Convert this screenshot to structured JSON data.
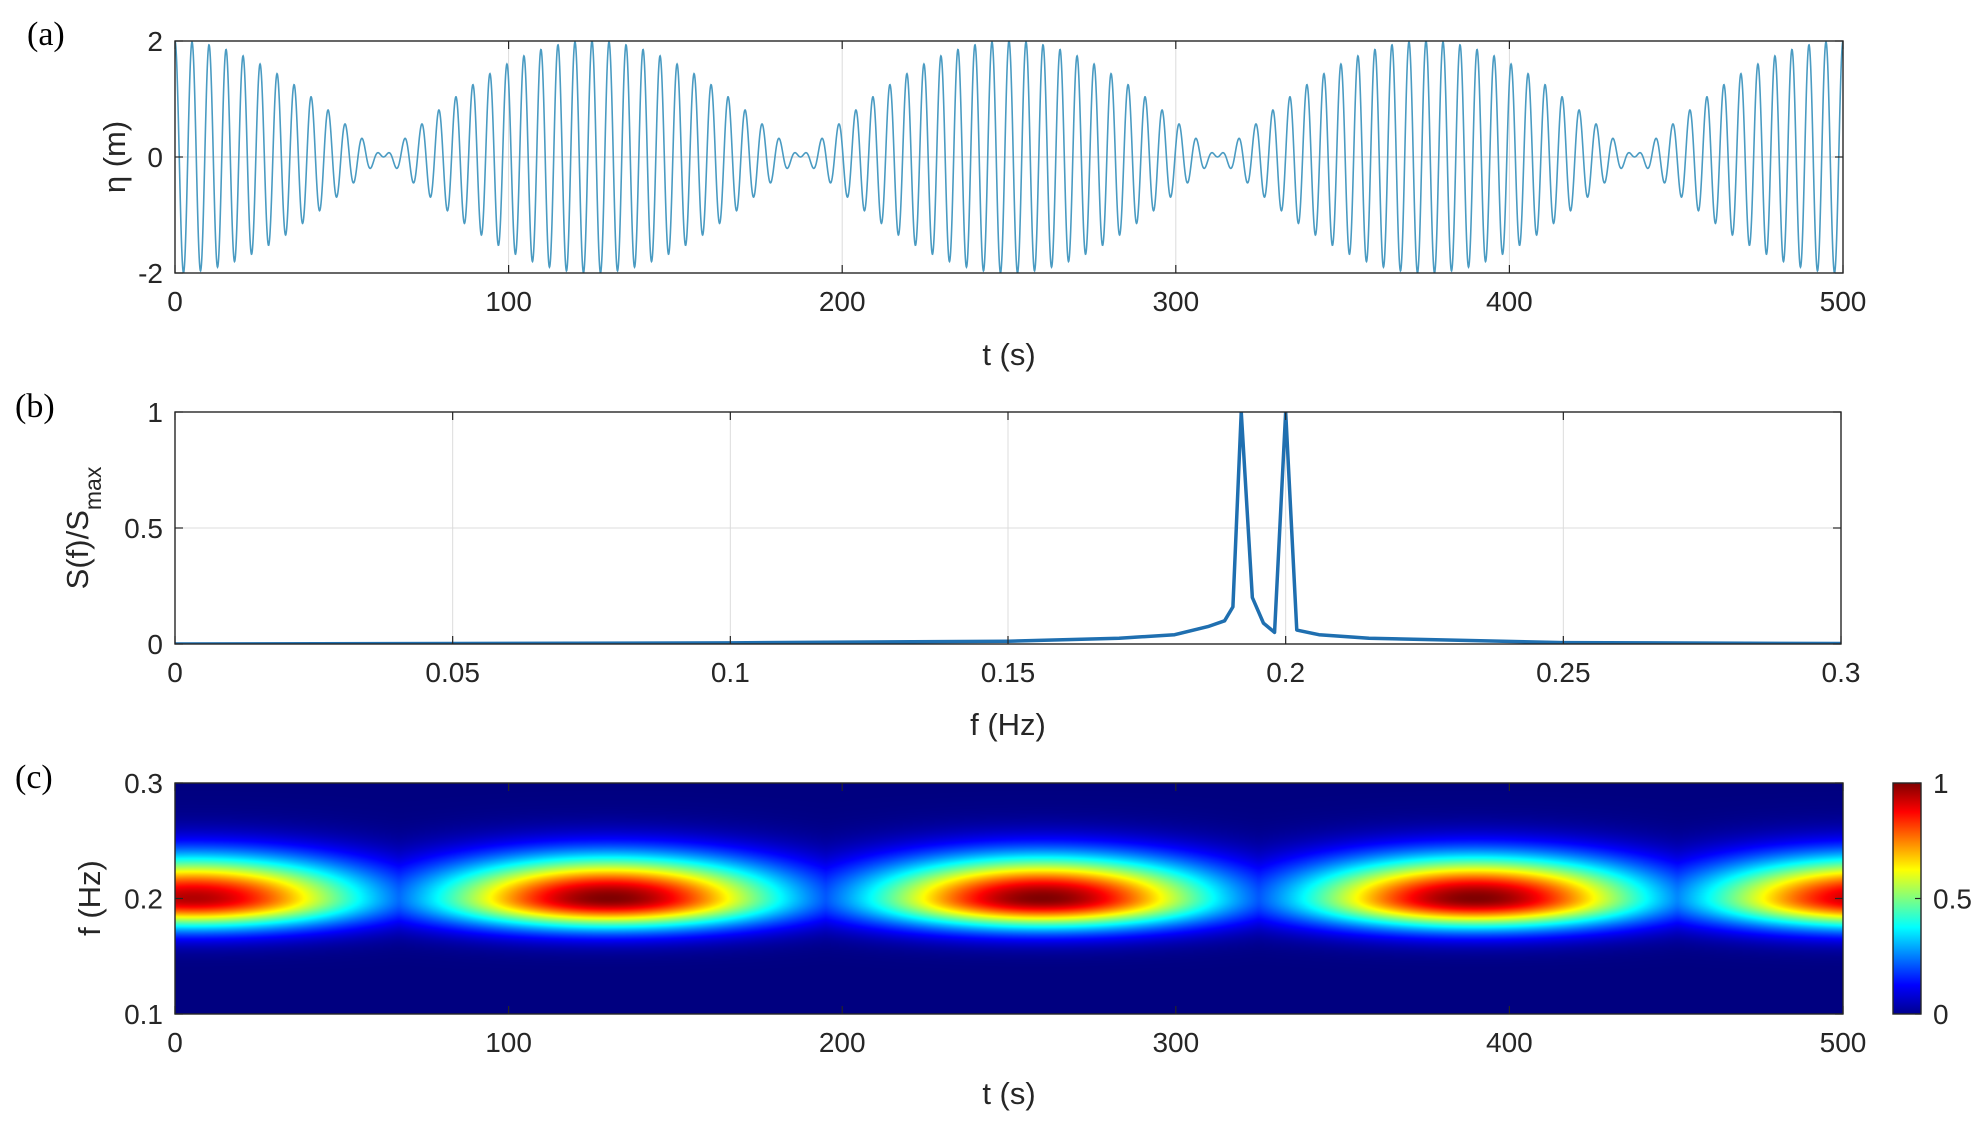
{
  "chart_data": [
    {
      "panel": "(a)",
      "type": "line",
      "xlabel": "t (s)",
      "ylabel": "η (m)",
      "xlim": [
        0,
        500
      ],
      "ylim": [
        -2,
        2
      ],
      "xticks": [
        "0",
        "100",
        "200",
        "300",
        "400",
        "500"
      ],
      "yticks": [
        "2",
        "0",
        "-2"
      ],
      "grid": true,
      "color": "#4a9bc2",
      "series": [
        {
          "function": "cos(2π·0.192·t) + cos(2π·0.2·t)",
          "components": [
            {
              "amplitude": 1,
              "frequency_hz": 0.192
            },
            {
              "amplitude": 1,
              "frequency_hz": 0.2
            }
          ]
        }
      ]
    },
    {
      "panel": "(b)",
      "type": "line",
      "xlabel": "f (Hz)",
      "ylabel": "S(f)/S_max",
      "xlim": [
        0,
        0.3
      ],
      "ylim": [
        0,
        1
      ],
      "xticks": [
        "0",
        "0.05",
        "0.1",
        "0.15",
        "0.2",
        "0.25",
        "0.3"
      ],
      "yticks": [
        "1",
        "0.5",
        "0"
      ],
      "grid": true,
      "color": "#1f6fb0",
      "x": [
        0,
        0.05,
        0.1,
        0.15,
        0.17,
        0.18,
        0.186,
        0.189,
        0.1905,
        0.192,
        0.194,
        0.196,
        0.198,
        0.2,
        0.202,
        0.206,
        0.215,
        0.25,
        0.3
      ],
      "y": [
        0,
        0.002,
        0.005,
        0.012,
        0.025,
        0.04,
        0.075,
        0.1,
        0.16,
        1.0,
        0.2,
        0.09,
        0.05,
        1.0,
        0.06,
        0.04,
        0.025,
        0.006,
        0.002
      ]
    },
    {
      "panel": "(c)",
      "type": "heatmap",
      "xlabel": "t (s)",
      "ylabel": "f (Hz)",
      "xlim": [
        0,
        500
      ],
      "ylim": [
        0.1,
        0.3
      ],
      "xticks": [
        "0",
        "100",
        "200",
        "300",
        "400",
        "500"
      ],
      "yticks": [
        "0.3",
        "0.2",
        "0.1"
      ],
      "colorbar": {
        "ticks": [
          "1",
          "0.5",
          "0"
        ],
        "range": [
          0,
          1
        ],
        "colormap": "jet"
      },
      "peaks": [
        {
          "t": 5,
          "f": 0.2,
          "value": 0.95
        },
        {
          "t": 130,
          "f": 0.2,
          "value": 1.0
        },
        {
          "t": 260,
          "f": 0.2,
          "value": 1.0
        },
        {
          "t": 390,
          "f": 0.2,
          "value": 1.0
        },
        {
          "t": 510,
          "f": 0.2,
          "value": 0.95
        }
      ]
    }
  ]
}
